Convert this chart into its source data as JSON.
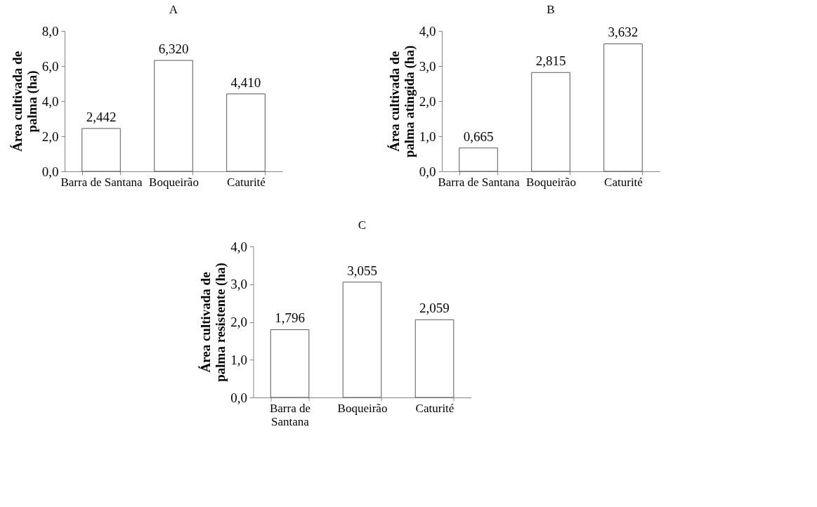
{
  "chart_data": [
    {
      "type": "bar",
      "title": "A",
      "ylabel": "Área cultivada de\npalma (ha)",
      "categories": [
        "Barra de Santana",
        "Boqueirão",
        "Caturité"
      ],
      "values": [
        2.442,
        6.32,
        4.41
      ],
      "value_labels": [
        "2,442",
        "6,320",
        "4,410"
      ],
      "color": "#ffffff",
      "ylim": [
        0,
        8
      ],
      "yticks": [
        {
          "value": 0,
          "label": "0,0"
        },
        {
          "value": 2,
          "label": "2,0"
        },
        {
          "value": 4,
          "label": "4,0"
        },
        {
          "value": 6,
          "label": "6,0"
        },
        {
          "value": 8,
          "label": "8,0"
        }
      ],
      "grid": false
    },
    {
      "type": "bar",
      "title": "B",
      "ylabel": "Área cultivada de\npalma atingida (ha)",
      "categories": [
        "Barra de Santana",
        "Boqueirão",
        "Caturité"
      ],
      "values": [
        0.665,
        2.815,
        3.632
      ],
      "value_labels": [
        "0,665",
        "2,815",
        "3,632"
      ],
      "color": "#ffffff",
      "ylim": [
        0,
        4
      ],
      "yticks": [
        {
          "value": 0,
          "label": "0,0"
        },
        {
          "value": 1,
          "label": "1,0"
        },
        {
          "value": 2,
          "label": "2,0"
        },
        {
          "value": 3,
          "label": "3,0"
        },
        {
          "value": 4,
          "label": "4,0"
        }
      ],
      "grid": false
    },
    {
      "type": "bar",
      "title": "C",
      "ylabel": "Área cultivada de\npalma resistente (ha)",
      "categories": [
        "Barra de\nSantana",
        "Boqueirão",
        "Caturité"
      ],
      "values": [
        1.796,
        3.055,
        2.059
      ],
      "value_labels": [
        "1,796",
        "3,055",
        "2,059"
      ],
      "color": "#ffffff",
      "ylim": [
        0,
        4
      ],
      "yticks": [
        {
          "value": 0,
          "label": "0,0"
        },
        {
          "value": 1,
          "label": "1,0"
        },
        {
          "value": 2,
          "label": "2,0"
        },
        {
          "value": 3,
          "label": "3,0"
        },
        {
          "value": 4,
          "label": "4,0"
        }
      ],
      "grid": false
    }
  ]
}
